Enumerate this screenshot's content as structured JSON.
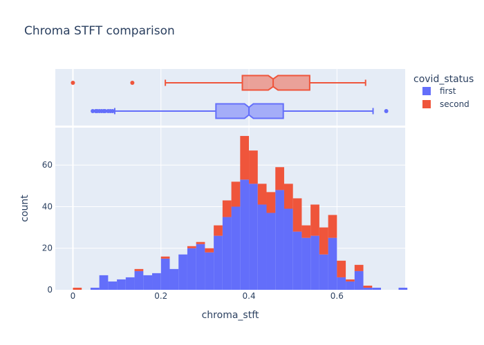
{
  "chart_data": {
    "type": "histogram",
    "title": "Chroma STFT comparison",
    "xlabel": "chroma_stft",
    "ylabel": "count",
    "xlim": [
      -0.04,
      0.755
    ],
    "ylim": [
      0,
      78
    ],
    "xticks": [
      0,
      0.2,
      0.4,
      0.6
    ],
    "xtick_labels": [
      "0",
      "0.2",
      "0.4",
      "0.6"
    ],
    "yticks": [
      0,
      20,
      40,
      60
    ],
    "ytick_labels": [
      "0",
      "20",
      "40",
      "60"
    ],
    "bin_start": 0.0,
    "bin_width": 0.02,
    "stacked": true,
    "grid": true,
    "legend": {
      "title": "covid_status",
      "position": "right",
      "items": [
        {
          "label": "first",
          "color": "#636efa"
        },
        {
          "label": "second",
          "color": "#ef553b"
        }
      ]
    },
    "series": [
      {
        "name": "first",
        "color": "#636efa",
        "values": [
          0,
          0,
          1,
          7,
          4,
          5,
          6,
          9,
          7,
          8,
          15,
          10,
          17,
          20,
          22,
          18,
          26,
          35,
          40,
          53,
          51,
          41,
          37,
          48,
          39,
          28,
          25,
          26,
          17,
          25,
          6,
          4,
          9,
          1,
          1,
          0,
          0,
          1
        ]
      },
      {
        "name": "second",
        "color": "#ef553b",
        "values": [
          1,
          0,
          0,
          0,
          0,
          0,
          0,
          1,
          0,
          0,
          1,
          0,
          0,
          1,
          1,
          2,
          5,
          8,
          12,
          21,
          16,
          10,
          10,
          11,
          12,
          16,
          6,
          15,
          13,
          11,
          8,
          1,
          3,
          1,
          0,
          0,
          0,
          0
        ]
      }
    ],
    "marginal_boxplots": [
      {
        "name": "second",
        "color": "#ef553b",
        "q1": 0.385,
        "median": 0.455,
        "q3": 0.538,
        "notch_low": 0.444,
        "notch_high": 0.466,
        "whisker_low": 0.21,
        "whisker_high": 0.665,
        "outliers": [
          0.0,
          0.135
        ]
      },
      {
        "name": "first",
        "color": "#636efa",
        "q1": 0.325,
        "median": 0.4,
        "q3": 0.478,
        "notch_low": 0.39,
        "notch_high": 0.41,
        "whisker_low": 0.095,
        "whisker_high": 0.682,
        "outliers": [
          0.045,
          0.052,
          0.055,
          0.06,
          0.065,
          0.07,
          0.073,
          0.08,
          0.085,
          0.09,
          0.712
        ]
      }
    ]
  }
}
